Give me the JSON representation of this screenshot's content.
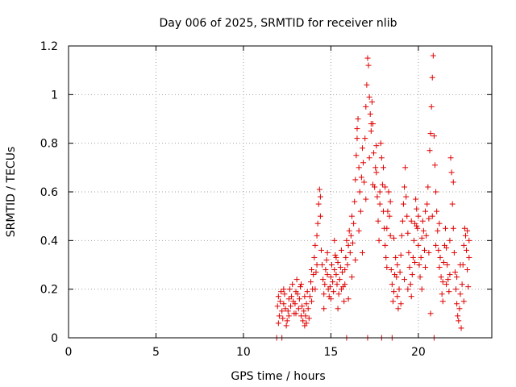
{
  "chart_data": {
    "type": "scatter",
    "title": "Day 006 of 2025, SRMTID for receiver nlib",
    "xlabel": "GPS time / hours",
    "ylabel": "SRMTID / TECUs",
    "xlim": [
      0,
      24.2
    ],
    "ylim": [
      0,
      1.2
    ],
    "xticks": [
      0,
      5,
      10,
      15,
      20
    ],
    "yticks": [
      0,
      0.2,
      0.4,
      0.6,
      0.8,
      1,
      1.2
    ],
    "ytick_labels": [
      "0",
      "0.2",
      "0.4",
      "0.6",
      "0.8",
      "1",
      "1.2"
    ],
    "grid": true,
    "marker": "+",
    "series": [
      {
        "name": "SRMTID",
        "color": "#e00000",
        "points": [
          [
            11.9,
            0.0
          ],
          [
            12.2,
            0.0
          ],
          [
            15.9,
            0.0
          ],
          [
            17.1,
            0.0
          ],
          [
            17.9,
            0.0
          ],
          [
            18.5,
            0.0
          ],
          [
            20.9,
            0.0
          ],
          [
            11.95,
            0.13
          ],
          [
            12.0,
            0.17
          ],
          [
            12.05,
            0.09
          ],
          [
            12.1,
            0.15
          ],
          [
            12.15,
            0.19
          ],
          [
            12.2,
            0.11
          ],
          [
            12.25,
            0.08
          ],
          [
            12.3,
            0.14
          ],
          [
            12.35,
            0.18
          ],
          [
            12.4,
            0.12
          ],
          [
            12.45,
            0.05
          ],
          [
            12.5,
            0.07
          ],
          [
            12.55,
            0.11
          ],
          [
            12.6,
            0.16
          ],
          [
            12.65,
            0.2
          ],
          [
            12.7,
            0.13
          ],
          [
            12.75,
            0.17
          ],
          [
            12.8,
            0.22
          ],
          [
            12.85,
            0.15
          ],
          [
            12.9,
            0.1
          ],
          [
            12.95,
            0.14
          ],
          [
            13.0,
            0.19
          ],
          [
            13.05,
            0.24
          ],
          [
            13.1,
            0.18
          ],
          [
            13.15,
            0.12
          ],
          [
            13.2,
            0.16
          ],
          [
            13.25,
            0.21
          ],
          [
            13.3,
            0.09
          ],
          [
            13.35,
            0.13
          ],
          [
            13.4,
            0.07
          ],
          [
            13.45,
            0.11
          ],
          [
            13.5,
            0.05
          ],
          [
            13.55,
            0.09
          ],
          [
            13.6,
            0.14
          ],
          [
            13.65,
            0.19
          ],
          [
            13.7,
            0.12
          ],
          [
            13.75,
            0.08
          ],
          [
            13.8,
            0.17
          ],
          [
            13.85,
            0.23
          ],
          [
            13.9,
            0.28
          ],
          [
            13.95,
            0.2
          ],
          [
            14.0,
            0.26
          ],
          [
            14.05,
            0.33
          ],
          [
            14.1,
            0.38
          ],
          [
            14.15,
            0.27
          ],
          [
            14.2,
            0.42
          ],
          [
            14.25,
            0.47
          ],
          [
            14.3,
            0.55
          ],
          [
            14.35,
            0.61
          ],
          [
            14.4,
            0.5
          ],
          [
            14.45,
            0.36
          ],
          [
            14.5,
            0.3
          ],
          [
            14.55,
            0.24
          ],
          [
            14.6,
            0.18
          ],
          [
            14.65,
            0.22
          ],
          [
            14.7,
            0.28
          ],
          [
            14.75,
            0.32
          ],
          [
            14.8,
            0.26
          ],
          [
            14.85,
            0.2
          ],
          [
            14.9,
            0.17
          ],
          [
            14.95,
            0.21
          ],
          [
            15.0,
            0.25
          ],
          [
            15.05,
            0.3
          ],
          [
            15.1,
            0.23
          ],
          [
            15.15,
            0.19
          ],
          [
            15.2,
            0.28
          ],
          [
            15.25,
            0.34
          ],
          [
            15.3,
            0.26
          ],
          [
            15.35,
            0.22
          ],
          [
            15.4,
            0.31
          ],
          [
            15.45,
            0.18
          ],
          [
            15.5,
            0.24
          ],
          [
            15.55,
            0.29
          ],
          [
            15.6,
            0.36
          ],
          [
            15.65,
            0.27
          ],
          [
            15.7,
            0.21
          ],
          [
            15.75,
            0.15
          ],
          [
            15.8,
            0.22
          ],
          [
            15.85,
            0.33
          ],
          [
            15.9,
            0.4
          ],
          [
            15.95,
            0.3
          ],
          [
            16.0,
            0.38
          ],
          [
            16.05,
            0.44
          ],
          [
            16.1,
            0.35
          ],
          [
            16.15,
            0.42
          ],
          [
            16.2,
            0.5
          ],
          [
            16.25,
            0.39
          ],
          [
            16.3,
            0.47
          ],
          [
            16.35,
            0.56
          ],
          [
            16.4,
            0.65
          ],
          [
            16.45,
            0.75
          ],
          [
            16.5,
            0.86
          ],
          [
            16.55,
            0.9
          ],
          [
            16.6,
            0.7
          ],
          [
            16.65,
            0.6
          ],
          [
            16.7,
            0.52
          ],
          [
            16.75,
            0.66
          ],
          [
            16.8,
            0.78
          ],
          [
            16.85,
            0.72
          ],
          [
            16.9,
            0.64
          ],
          [
            16.95,
            0.82
          ],
          [
            17.0,
            0.95
          ],
          [
            17.05,
            1.04
          ],
          [
            17.1,
            1.15
          ],
          [
            17.15,
            1.12
          ],
          [
            17.2,
            0.99
          ],
          [
            17.25,
            0.92
          ],
          [
            17.3,
            0.85
          ],
          [
            17.35,
            0.97
          ],
          [
            17.4,
            0.88
          ],
          [
            17.45,
            0.76
          ],
          [
            17.5,
            0.62
          ],
          [
            17.55,
            0.7
          ],
          [
            17.6,
            0.68
          ],
          [
            17.65,
            0.58
          ],
          [
            17.7,
            0.48
          ],
          [
            17.75,
            0.4
          ],
          [
            17.8,
            0.55
          ],
          [
            17.85,
            0.8
          ],
          [
            17.9,
            0.74
          ],
          [
            17.95,
            0.63
          ],
          [
            18.0,
            0.52
          ],
          [
            18.05,
            0.45
          ],
          [
            18.1,
            0.38
          ],
          [
            18.15,
            0.33
          ],
          [
            18.2,
            0.45
          ],
          [
            18.25,
            0.52
          ],
          [
            18.3,
            0.6
          ],
          [
            18.35,
            0.5
          ],
          [
            18.4,
            0.42
          ],
          [
            18.45,
            0.28
          ],
          [
            18.5,
            0.22
          ],
          [
            18.55,
            0.15
          ],
          [
            18.6,
            0.19
          ],
          [
            18.65,
            0.26
          ],
          [
            18.7,
            0.33
          ],
          [
            18.75,
            0.25
          ],
          [
            18.8,
            0.17
          ],
          [
            18.85,
            0.12
          ],
          [
            18.9,
            0.2
          ],
          [
            18.95,
            0.27
          ],
          [
            19.0,
            0.34
          ],
          [
            19.05,
            0.42
          ],
          [
            19.1,
            0.48
          ],
          [
            19.15,
            0.55
          ],
          [
            19.2,
            0.62
          ],
          [
            19.25,
            0.7
          ],
          [
            19.3,
            0.58
          ],
          [
            19.35,
            0.5
          ],
          [
            19.4,
            0.43
          ],
          [
            19.45,
            0.35
          ],
          [
            19.5,
            0.29
          ],
          [
            19.55,
            0.22
          ],
          [
            19.6,
            0.17
          ],
          [
            19.65,
            0.26
          ],
          [
            19.7,
            0.33
          ],
          [
            19.75,
            0.4
          ],
          [
            19.8,
            0.47
          ],
          [
            19.85,
            0.57
          ],
          [
            19.9,
            0.53
          ],
          [
            19.95,
            0.45
          ],
          [
            20.0,
            0.38
          ],
          [
            20.05,
            0.3
          ],
          [
            20.1,
            0.25
          ],
          [
            20.15,
            0.33
          ],
          [
            20.2,
            0.41
          ],
          [
            20.25,
            0.48
          ],
          [
            20.3,
            0.44
          ],
          [
            20.35,
            0.36
          ],
          [
            20.4,
            0.29
          ],
          [
            20.45,
            0.42
          ],
          [
            20.5,
            0.55
          ],
          [
            20.55,
            0.62
          ],
          [
            20.6,
            0.49
          ],
          [
            20.65,
            0.77
          ],
          [
            20.7,
            0.84
          ],
          [
            20.75,
            0.95
          ],
          [
            20.8,
            1.07
          ],
          [
            20.85,
            1.16
          ],
          [
            20.9,
            0.83
          ],
          [
            20.95,
            0.71
          ],
          [
            21.0,
            0.6
          ],
          [
            21.05,
            0.52
          ],
          [
            21.1,
            0.44
          ],
          [
            21.15,
            0.36
          ],
          [
            21.2,
            0.29
          ],
          [
            21.25,
            0.33
          ],
          [
            21.3,
            0.25
          ],
          [
            21.35,
            0.18
          ],
          [
            21.4,
            0.23
          ],
          [
            21.45,
            0.31
          ],
          [
            21.5,
            0.38
          ],
          [
            21.55,
            0.45
          ],
          [
            21.6,
            0.37
          ],
          [
            21.65,
            0.3
          ],
          [
            21.7,
            0.24
          ],
          [
            21.75,
            0.19
          ],
          [
            21.8,
            0.26
          ],
          [
            21.85,
            0.74
          ],
          [
            21.9,
            0.68
          ],
          [
            21.95,
            0.55
          ],
          [
            22.0,
            0.45
          ],
          [
            22.05,
            0.35
          ],
          [
            22.1,
            0.27
          ],
          [
            22.15,
            0.2
          ],
          [
            22.2,
            0.14
          ],
          [
            22.25,
            0.09
          ],
          [
            22.3,
            0.07
          ],
          [
            22.35,
            0.12
          ],
          [
            22.4,
            0.18
          ],
          [
            22.45,
            0.04
          ],
          [
            22.5,
            0.22
          ],
          [
            22.55,
            0.3
          ],
          [
            22.6,
            0.38
          ],
          [
            22.65,
            0.45
          ],
          [
            22.7,
            0.42
          ],
          [
            22.75,
            0.36
          ],
          [
            22.8,
            0.28
          ],
          [
            22.85,
            0.21
          ],
          [
            22.9,
            0.4
          ],
          [
            12.0,
            0.06
          ],
          [
            12.3,
            0.2
          ],
          [
            12.6,
            0.09
          ],
          [
            13.0,
            0.1
          ],
          [
            13.3,
            0.22
          ],
          [
            13.6,
            0.06
          ],
          [
            13.9,
            0.15
          ],
          [
            14.2,
            0.3
          ],
          [
            14.4,
            0.58
          ],
          [
            14.6,
            0.12
          ],
          [
            14.8,
            0.35
          ],
          [
            15.0,
            0.16
          ],
          [
            15.2,
            0.4
          ],
          [
            15.4,
            0.12
          ],
          [
            15.6,
            0.2
          ],
          [
            15.8,
            0.28
          ],
          [
            16.0,
            0.16
          ],
          [
            16.2,
            0.25
          ],
          [
            16.4,
            0.32
          ],
          [
            16.6,
            0.44
          ],
          [
            16.8,
            0.35
          ],
          [
            17.0,
            0.57
          ],
          [
            17.2,
            0.74
          ],
          [
            17.4,
            0.63
          ],
          [
            17.6,
            0.79
          ],
          [
            17.8,
            0.6
          ],
          [
            18.0,
            0.7
          ],
          [
            18.2,
            0.29
          ],
          [
            18.4,
            0.56
          ],
          [
            18.6,
            0.41
          ],
          [
            18.8,
            0.3
          ],
          [
            19.0,
            0.14
          ],
          [
            19.2,
            0.24
          ],
          [
            19.4,
            0.2
          ],
          [
            19.6,
            0.48
          ],
          [
            19.8,
            0.31
          ],
          [
            20.0,
            0.5
          ],
          [
            20.2,
            0.2
          ],
          [
            20.4,
            0.52
          ],
          [
            20.6,
            0.35
          ],
          [
            20.8,
            0.5
          ],
          [
            21.0,
            0.38
          ],
          [
            21.2,
            0.47
          ],
          [
            21.4,
            0.15
          ],
          [
            21.6,
            0.22
          ],
          [
            21.8,
            0.4
          ],
          [
            22.0,
            0.64
          ],
          [
            22.2,
            0.25
          ],
          [
            22.4,
            0.3
          ],
          [
            22.6,
            0.15
          ],
          [
            22.8,
            0.44
          ],
          [
            22.9,
            0.33
          ],
          [
            17.3,
            0.88
          ],
          [
            16.5,
            0.82
          ],
          [
            19.9,
            0.46
          ],
          [
            20.7,
            0.1
          ],
          [
            18.1,
            0.62
          ],
          [
            15.3,
            0.33
          ],
          [
            14.1,
            0.2
          ],
          [
            13.5,
            0.17
          ]
        ]
      }
    ]
  }
}
